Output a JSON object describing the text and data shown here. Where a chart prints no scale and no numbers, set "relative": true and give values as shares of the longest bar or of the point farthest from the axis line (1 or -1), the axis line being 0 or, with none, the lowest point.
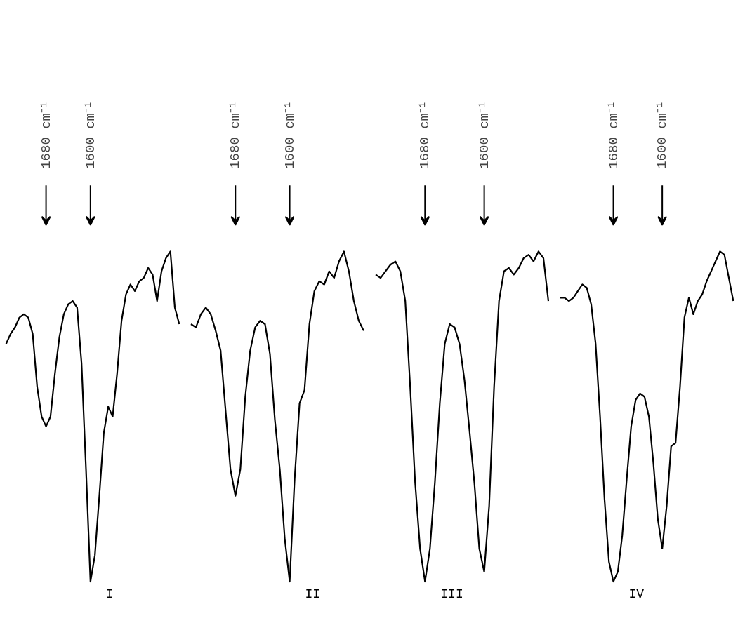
{
  "chart_data": [
    {
      "type": "line",
      "relative": true,
      "categories": [
        null,
        null,
        null,
        null,
        null,
        null,
        null,
        null,
        null,
        null,
        null,
        null,
        null,
        null,
        null,
        null,
        null,
        null,
        null,
        null,
        null,
        null,
        null,
        null,
        null,
        null,
        null,
        null,
        null,
        null,
        null,
        null,
        null,
        null,
        null,
        null,
        null,
        null,
        null,
        null
      ],
      "tick_labels": false,
      "grid": false,
      "legend": false,
      "marker": "none",
      "line_style": "solid",
      "annotations": [
        "1680 cm⁻¹",
        "1600 cm⁻¹"
      ],
      "series": [
        {
          "name": "I",
          "color": "#000000",
          "values": [
            0.72,
            0.75,
            0.77,
            0.8,
            0.81,
            0.8,
            0.75,
            0.59,
            0.5,
            0.47,
            0.5,
            0.63,
            0.74,
            0.81,
            0.84,
            0.85,
            0.83,
            0.66,
            0.34,
            0,
            0.08,
            0.26,
            0.45,
            0.53,
            0.5,
            0.63,
            0.79,
            0.87,
            0.9,
            0.88,
            0.91,
            0.92,
            0.95,
            0.93,
            0.85,
            0.94,
            0.98,
            1,
            0.83,
            0.78
          ]
        }
      ]
    },
    {
      "type": "line",
      "relative": true,
      "categories": [
        null,
        null,
        null,
        null,
        null,
        null,
        null,
        null,
        null,
        null,
        null,
        null,
        null,
        null,
        null,
        null,
        null,
        null,
        null,
        null,
        null,
        null,
        null,
        null,
        null,
        null,
        null,
        null,
        null,
        null,
        null,
        null,
        null,
        null,
        null,
        null
      ],
      "tick_labels": false,
      "grid": false,
      "legend": false,
      "marker": "none",
      "line_style": "solid",
      "annotations": [
        "1680 cm⁻¹",
        "1600 cm⁻¹"
      ],
      "series": [
        {
          "name": "II",
          "color": "#000000",
          "values": [
            0.78,
            0.77,
            0.81,
            0.83,
            0.81,
            0.76,
            0.7,
            0.52,
            0.34,
            0.26,
            0.34,
            0.56,
            0.7,
            0.77,
            0.79,
            0.78,
            0.69,
            0.49,
            0.34,
            0.13,
            0,
            0.31,
            0.54,
            0.58,
            0.78,
            0.88,
            0.91,
            0.9,
            0.94,
            0.92,
            0.97,
            1,
            0.94,
            0.85,
            0.79,
            0.76
          ]
        }
      ]
    },
    {
      "type": "line",
      "relative": true,
      "categories": [
        null,
        null,
        null,
        null,
        null,
        null,
        null,
        null,
        null,
        null,
        null,
        null,
        null,
        null,
        null,
        null,
        null,
        null,
        null,
        null,
        null,
        null,
        null,
        null,
        null,
        null,
        null,
        null,
        null,
        null,
        null,
        null,
        null,
        null,
        null,
        null
      ],
      "tick_labels": false,
      "grid": false,
      "legend": false,
      "marker": "none",
      "line_style": "solid",
      "annotations": [
        "1680 cm⁻¹",
        "1600 cm⁻¹"
      ],
      "series": [
        {
          "name": "III",
          "color": "#000000",
          "values": [
            0.93,
            0.92,
            0.94,
            0.96,
            0.97,
            0.94,
            0.85,
            0.59,
            0.3,
            0.1,
            0,
            0.1,
            0.3,
            0.54,
            0.72,
            0.78,
            0.77,
            0.72,
            0.61,
            0.46,
            0.3,
            0.1,
            0.03,
            0.23,
            0.59,
            0.85,
            0.94,
            0.95,
            0.93,
            0.95,
            0.98,
            0.99,
            0.97,
            1,
            0.98,
            0.85
          ]
        }
      ]
    },
    {
      "type": "line",
      "relative": true,
      "categories": [
        null,
        null,
        null,
        null,
        null,
        null,
        null,
        null,
        null,
        null,
        null,
        null,
        null,
        null,
        null,
        null,
        null,
        null,
        null,
        null,
        null,
        null,
        null,
        null,
        null,
        null,
        null,
        null,
        null,
        null,
        null,
        null,
        null,
        null,
        null,
        null,
        null,
        null,
        null,
        null
      ],
      "tick_labels": false,
      "grid": false,
      "legend": false,
      "marker": "none",
      "line_style": "solid",
      "annotations": [
        "1680 cm⁻¹",
        "1600 cm⁻¹"
      ],
      "series": [
        {
          "name": "IV",
          "color": "#000000",
          "values": [
            0.86,
            0.86,
            0.85,
            0.86,
            0.88,
            0.9,
            0.89,
            0.84,
            0.72,
            0.5,
            0.25,
            0.06,
            0,
            0.03,
            0.14,
            0.31,
            0.47,
            0.55,
            0.57,
            0.56,
            0.5,
            0.36,
            0.19,
            0.1,
            0.23,
            0.41,
            0.42,
            0.59,
            0.8,
            0.86,
            0.81,
            0.85,
            0.87,
            0.91,
            0.94,
            0.97,
            1,
            0.99,
            0.92,
            0.85
          ]
        }
      ]
    }
  ]
}
